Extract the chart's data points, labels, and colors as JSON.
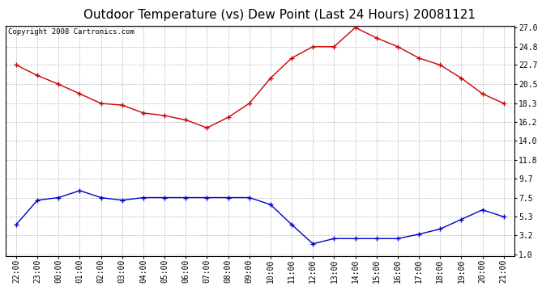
{
  "title": "Outdoor Temperature (vs) Dew Point (Last 24 Hours) 20081121",
  "copyright": "Copyright 2008 Cartronics.com",
  "x_labels": [
    "22:00",
    "23:00",
    "00:00",
    "01:00",
    "02:00",
    "03:00",
    "04:00",
    "05:00",
    "06:00",
    "07:00",
    "08:00",
    "09:00",
    "10:00",
    "11:00",
    "12:00",
    "13:00",
    "14:00",
    "15:00",
    "16:00",
    "17:00",
    "18:00",
    "19:00",
    "20:00",
    "21:00"
  ],
  "temp_data": [
    22.7,
    21.5,
    20.5,
    19.4,
    18.3,
    18.1,
    17.2,
    16.9,
    16.4,
    15.5,
    16.7,
    18.3,
    21.2,
    23.5,
    24.8,
    24.8,
    27.0,
    25.8,
    24.8,
    23.5,
    22.7,
    21.2,
    19.4,
    18.3
  ],
  "dew_data": [
    4.4,
    7.2,
    7.5,
    8.3,
    7.5,
    7.2,
    7.5,
    7.5,
    7.5,
    7.5,
    7.5,
    7.5,
    6.7,
    4.4,
    2.2,
    2.8,
    2.8,
    2.8,
    2.8,
    3.3,
    3.9,
    5.0,
    6.1,
    5.3
  ],
  "temp_color": "#cc0000",
  "dew_color": "#0000cc",
  "bg_color": "#ffffff",
  "plot_bg_color": "#ffffff",
  "grid_color": "#bbbbbb",
  "yticks": [
    1.0,
    3.2,
    5.3,
    7.5,
    9.7,
    11.8,
    14.0,
    16.2,
    18.3,
    20.5,
    22.7,
    24.8,
    27.0
  ],
  "ymin": 1.0,
  "ymax": 27.0,
  "title_fontsize": 11,
  "tick_fontsize": 7,
  "copyright_fontsize": 6.5
}
